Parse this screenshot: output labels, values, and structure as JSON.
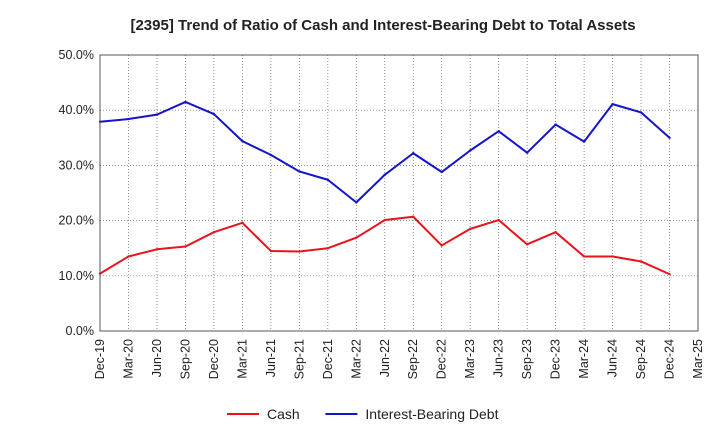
{
  "chart_data": {
    "type": "line",
    "title": "[2395]  Trend of Ratio of Cash and Interest-Bearing Debt to Total Assets",
    "xlabel": "",
    "ylabel": "",
    "ylim": [
      0,
      50
    ],
    "yticks": [
      "0.0%",
      "10.0%",
      "20.0%",
      "30.0%",
      "40.0%",
      "50.0%"
    ],
    "x_ticks": [
      "Dec-19",
      "Mar-20",
      "Jun-20",
      "Sep-20",
      "Dec-20",
      "Mar-21",
      "Jun-21",
      "Sep-21",
      "Dec-21",
      "Mar-22",
      "Jun-22",
      "Sep-22",
      "Dec-22",
      "Mar-23",
      "Jun-23",
      "Sep-23",
      "Dec-23",
      "Mar-24",
      "Jun-24",
      "Sep-24",
      "Dec-24",
      "Mar-25"
    ],
    "x": [
      "Dec-19",
      "Mar-20",
      "Jun-20",
      "Sep-20",
      "Dec-20",
      "Mar-21",
      "Jun-21",
      "Sep-21",
      "Dec-21",
      "Mar-22",
      "Jun-22",
      "Sep-22",
      "Dec-22",
      "Mar-23",
      "Jun-23",
      "Sep-23",
      "Dec-23",
      "Mar-24",
      "Jun-24",
      "Sep-24",
      "Dec-24"
    ],
    "grid": true,
    "legend_position": "bottom",
    "series": [
      {
        "name": "Cash",
        "color": "#e8141b",
        "values": [
          10.4,
          13.5,
          14.8,
          15.3,
          17.9,
          19.6,
          14.5,
          14.4,
          15.0,
          16.9,
          20.1,
          20.7,
          15.5,
          18.5,
          20.1,
          15.7,
          17.9,
          13.5,
          13.5,
          12.6,
          10.3
        ]
      },
      {
        "name": "Interest-Bearing Debt",
        "color": "#1414cc",
        "values": [
          37.9,
          38.4,
          39.2,
          41.5,
          39.3,
          34.4,
          31.9,
          28.9,
          27.4,
          23.3,
          28.3,
          32.2,
          28.8,
          32.7,
          36.2,
          32.3,
          37.4,
          34.3,
          41.1,
          39.6,
          35.0
        ]
      }
    ]
  }
}
